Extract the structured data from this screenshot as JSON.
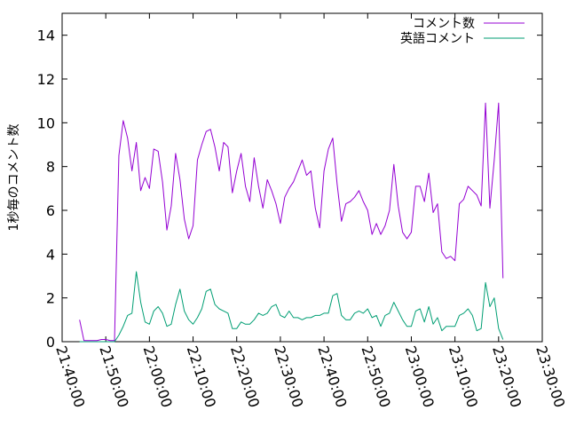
{
  "chart_data": {
    "type": "line",
    "title": "",
    "xlabel": "",
    "ylabel": "1秒毎のコメント数",
    "ylim": [
      0,
      15
    ],
    "y_ticks": [
      0,
      2,
      4,
      6,
      8,
      10,
      12,
      14
    ],
    "x_start": "21:40:00",
    "x_tick_labels": [
      "21:40:00",
      "21:50:00",
      "22:00:00",
      "22:10:00",
      "22:20:00",
      "22:30:00",
      "22:40:00",
      "22:50:00",
      "23:00:00",
      "23:10:00",
      "23:20:00",
      "23:30:00"
    ],
    "x_tick_interval_minutes": 10,
    "x_range_minutes": [
      0,
      110
    ],
    "sample_interval_minutes": 1,
    "legend_position": "top-right",
    "grid": false,
    "series": [
      {
        "name": "コメント数",
        "color": "#9400d3",
        "x_first_minute": 4,
        "values": [
          1.0,
          0.05,
          0.05,
          0.05,
          0.05,
          0.1,
          0.1,
          0.05,
          0.05,
          8.5,
          10.1,
          9.3,
          7.8,
          9.1,
          6.9,
          7.5,
          7.0,
          8.8,
          8.7,
          7.3,
          5.1,
          6.2,
          8.6,
          7.4,
          5.6,
          4.7,
          5.3,
          8.3,
          9.0,
          9.6,
          9.7,
          8.9,
          7.8,
          9.1,
          8.9,
          6.8,
          7.8,
          8.6,
          7.1,
          6.4,
          8.4,
          7.1,
          6.1,
          7.4,
          6.9,
          6.3,
          5.4,
          6.6,
          7.0,
          7.3,
          7.8,
          8.3,
          7.6,
          7.8,
          6.1,
          5.2,
          7.8,
          8.8,
          9.3,
          7.2,
          5.5,
          6.3,
          6.4,
          6.6,
          6.9,
          6.4,
          6.0,
          4.9,
          5.4,
          4.9,
          5.3,
          6.0,
          8.1,
          6.2,
          5.0,
          4.7,
          5.0,
          7.1,
          7.1,
          6.4,
          7.7,
          5.9,
          6.3,
          4.1,
          3.8,
          3.9,
          3.7,
          6.3,
          6.5,
          7.1,
          6.9,
          6.7,
          6.2,
          10.9,
          6.1,
          8.3,
          10.9,
          2.9
        ]
      },
      {
        "name": "英語コメント",
        "color": "#009e73",
        "x_first_minute": 4,
        "values": [
          0,
          0,
          0,
          0,
          0,
          0,
          0,
          0,
          0,
          0.3,
          0.7,
          1.2,
          1.3,
          3.2,
          1.8,
          0.9,
          0.8,
          1.4,
          1.6,
          1.3,
          0.7,
          0.8,
          1.7,
          2.4,
          1.4,
          1.0,
          0.8,
          1.1,
          1.5,
          2.3,
          2.4,
          1.7,
          1.5,
          1.4,
          1.3,
          0.6,
          0.6,
          0.9,
          0.8,
          0.8,
          1.0,
          1.3,
          1.2,
          1.3,
          1.6,
          1.7,
          1.2,
          1.1,
          1.4,
          1.1,
          1.1,
          1.0,
          1.1,
          1.1,
          1.2,
          1.2,
          1.3,
          1.3,
          2.1,
          2.2,
          1.2,
          1.0,
          1.0,
          1.3,
          1.4,
          1.3,
          1.5,
          1.1,
          1.2,
          0.7,
          1.2,
          1.3,
          1.8,
          1.4,
          1.0,
          0.7,
          0.7,
          1.4,
          1.5,
          0.9,
          1.6,
          0.8,
          1.1,
          0.5,
          0.7,
          0.7,
          0.7,
          1.2,
          1.3,
          1.5,
          1.2,
          0.5,
          0.6,
          2.7,
          1.6,
          2.0,
          0.6,
          0.1
        ]
      }
    ]
  }
}
